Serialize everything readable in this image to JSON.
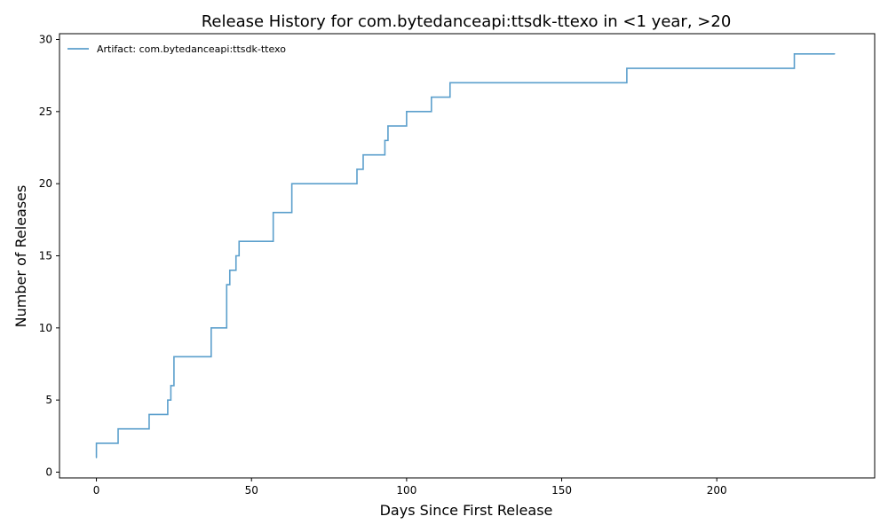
{
  "chart_data": {
    "type": "line",
    "drawstyle": "steps-post",
    "title": "Release History for com.bytedanceapi:ttsdk-ttexo in <1 year, >20",
    "xlabel": "Days Since First Release",
    "ylabel": "Number of Releases",
    "xlim": [
      -11.9,
      250.9
    ],
    "ylim": [
      -0.4,
      30.4
    ],
    "xticks": [
      0,
      50,
      100,
      150,
      200
    ],
    "yticks": [
      0,
      5,
      10,
      15,
      20,
      25,
      30
    ],
    "grid": false,
    "legend_position": "top-left",
    "series": [
      {
        "name": "Artifact: com.bytedanceapi:ttsdk-ttexo",
        "color": "#5b9fcc",
        "x": [
          0,
          0,
          7,
          17,
          23,
          24,
          25,
          37,
          42,
          42.5,
          43,
          45,
          46,
          57,
          63,
          84,
          86,
          93,
          94,
          100,
          108,
          114,
          171,
          225,
          238
        ],
        "y": [
          1,
          2,
          3,
          4,
          5,
          6,
          8,
          10,
          13,
          13,
          14,
          15,
          16,
          18,
          20,
          21,
          22,
          23,
          24,
          25,
          26,
          27,
          28,
          29,
          29
        ]
      }
    ]
  }
}
